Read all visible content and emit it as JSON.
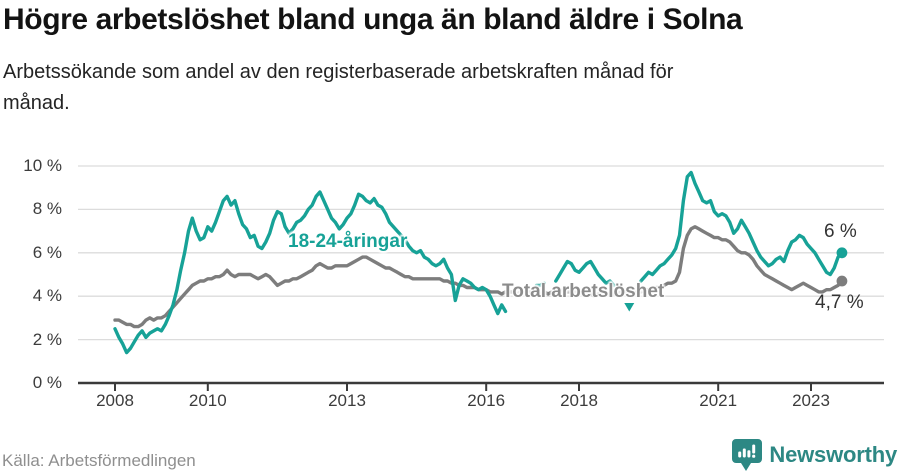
{
  "chart_data": {
    "type": "line",
    "title": "Högre arbetslöshet bland unga än bland äldre i Solna",
    "subtitle_line1": "Arbetssökande som andel av den registerbaserade arbetskraften månad för",
    "subtitle_line2": "månad.",
    "unit": "%",
    "start_year": 2008,
    "start_month": 1,
    "frequency": "monthly",
    "ylim": [
      0,
      10
    ],
    "grid": true,
    "y_ticks": [
      {
        "v": 0,
        "label": "0 %"
      },
      {
        "v": 2,
        "label": "2 %"
      },
      {
        "v": 4,
        "label": "4 %"
      },
      {
        "v": 6,
        "label": "6 %"
      },
      {
        "v": 8,
        "label": "8 %"
      },
      {
        "v": 10,
        "label": "10 %"
      }
    ],
    "x_ticks": [
      {
        "year": 2008,
        "label": "2008"
      },
      {
        "year": 2010,
        "label": "2010"
      },
      {
        "year": 2013,
        "label": "2013"
      },
      {
        "year": 2016,
        "label": "2016"
      },
      {
        "year": 2018,
        "label": "2018"
      },
      {
        "year": 2021,
        "label": "2021"
      },
      {
        "year": 2023,
        "label": "2023"
      }
    ],
    "series": [
      {
        "key": "youth",
        "name": "18-24-åringar",
        "color": "#17a297",
        "end_label": "6 %",
        "end_value": 6.0,
        "values": [
          2.5,
          2.1,
          1.8,
          1.4,
          1.6,
          1.9,
          2.2,
          2.4,
          2.1,
          2.3,
          2.4,
          2.5,
          2.4,
          2.7,
          3.1,
          3.6,
          4.3,
          5.2,
          6.0,
          7.0,
          7.6,
          7.0,
          6.6,
          6.7,
          7.2,
          7.0,
          7.4,
          7.9,
          8.4,
          8.6,
          8.2,
          8.4,
          7.8,
          7.3,
          7.1,
          6.7,
          6.8,
          6.3,
          6.2,
          6.5,
          6.9,
          7.5,
          7.9,
          7.8,
          7.2,
          6.9,
          7.1,
          7.4,
          7.5,
          7.7,
          8.0,
          8.2,
          8.6,
          8.8,
          8.4,
          8.0,
          7.6,
          7.4,
          7.1,
          7.3,
          7.6,
          7.8,
          8.2,
          8.7,
          8.6,
          8.4,
          8.3,
          8.5,
          8.2,
          8.1,
          7.8,
          7.4,
          7.2,
          7.0,
          6.8,
          6.6,
          6.3,
          6.1,
          6.0,
          6.1,
          5.8,
          5.7,
          5.5,
          5.4,
          5.5,
          5.7,
          5.3,
          5.0,
          3.8,
          4.5,
          4.8,
          4.7,
          4.6,
          4.4,
          4.3,
          4.4,
          4.3,
          4.0,
          3.6,
          3.2,
          3.6,
          3.3,
          null,
          null,
          null,
          null,
          null,
          null,
          null,
          4.5,
          4.5,
          4.6,
          null,
          null,
          4.7,
          5.0,
          5.3,
          5.6,
          5.5,
          5.2,
          5.1,
          5.3,
          5.5,
          5.6,
          5.3,
          5.0,
          4.8,
          4.6,
          4.7,
          4.5,
          null,
          null,
          null,
          3.5,
          null,
          null,
          4.7,
          4.9,
          5.1,
          5.0,
          5.2,
          5.4,
          5.5,
          5.7,
          5.9,
          6.2,
          6.8,
          8.4,
          9.5,
          9.7,
          9.2,
          8.8,
          8.4,
          8.3,
          8.4,
          7.9,
          7.7,
          7.8,
          7.7,
          7.4,
          6.9,
          7.1,
          7.5,
          7.2,
          6.9,
          6.5,
          6.1,
          5.8,
          5.6,
          5.4,
          5.5,
          5.7,
          5.8,
          5.6,
          6.1,
          6.5,
          6.6,
          6.8,
          6.7,
          6.4,
          6.2,
          6.0,
          5.7,
          5.4,
          5.1,
          5.0,
          5.3,
          5.8,
          6.0
        ]
      },
      {
        "key": "total",
        "name": "Total arbetslöshet",
        "color": "#7d7d7d",
        "label_color": "#8c8c8c",
        "end_label": "4,7 %",
        "end_value": 4.7,
        "values": [
          2.9,
          2.9,
          2.8,
          2.7,
          2.7,
          2.6,
          2.6,
          2.7,
          2.9,
          3.0,
          2.9,
          3.0,
          3.0,
          3.1,
          3.3,
          3.5,
          3.7,
          3.9,
          4.1,
          4.3,
          4.5,
          4.6,
          4.7,
          4.7,
          4.8,
          4.8,
          4.9,
          4.9,
          5.0,
          5.2,
          5.0,
          4.9,
          5.0,
          5.0,
          5.0,
          5.0,
          4.9,
          4.8,
          4.9,
          5.0,
          4.9,
          4.7,
          4.5,
          4.6,
          4.7,
          4.7,
          4.8,
          4.8,
          4.9,
          5.0,
          5.1,
          5.2,
          5.4,
          5.5,
          5.4,
          5.3,
          5.3,
          5.4,
          5.4,
          5.4,
          5.4,
          5.5,
          5.6,
          5.7,
          5.8,
          5.8,
          5.7,
          5.6,
          5.5,
          5.4,
          5.3,
          5.3,
          5.2,
          5.1,
          5.0,
          4.9,
          4.9,
          4.8,
          4.8,
          4.8,
          4.8,
          4.8,
          4.8,
          4.8,
          4.8,
          4.7,
          4.7,
          4.6,
          4.6,
          4.5,
          4.5,
          4.4,
          4.4,
          4.4,
          4.3,
          4.3,
          4.3,
          4.2,
          4.2,
          4.2,
          4.1,
          4.2,
          4.2,
          4.2,
          4.1,
          4.2,
          4.2,
          4.2,
          4.2,
          4.2,
          4.1,
          4.2,
          4.1,
          4.2,
          4.2,
          4.2,
          4.3,
          4.2,
          4.2,
          4.2,
          4.2,
          4.1,
          4.1,
          4.1,
          4.0,
          4.1,
          4.1,
          4.1,
          4.1,
          4.1,
          4.1,
          4.2,
          4.2,
          4.2,
          4.1,
          4.2,
          4.2,
          4.3,
          4.3,
          4.3,
          4.4,
          4.4,
          4.5,
          4.6,
          4.6,
          4.7,
          5.1,
          6.2,
          6.8,
          7.1,
          7.2,
          7.1,
          7.0,
          6.9,
          6.8,
          6.7,
          6.7,
          6.6,
          6.6,
          6.5,
          6.3,
          6.1,
          6.0,
          6.0,
          5.9,
          5.7,
          5.4,
          5.2,
          5.0,
          4.9,
          4.8,
          4.7,
          4.6,
          4.5,
          4.4,
          4.3,
          4.4,
          4.5,
          4.6,
          4.5,
          4.4,
          4.3,
          4.2,
          4.2,
          4.3,
          4.3,
          4.4,
          4.5,
          4.7
        ]
      }
    ],
    "colors": {
      "grid": "#dcdcdc",
      "axis": "#3a3a3a",
      "tick_label": "#3c3c3c",
      "end_label": "#333333"
    }
  },
  "footer": {
    "source": "Källa: Arbetsförmedlingen",
    "brand": "Newsworthy",
    "brand_color": "#2d8884"
  }
}
